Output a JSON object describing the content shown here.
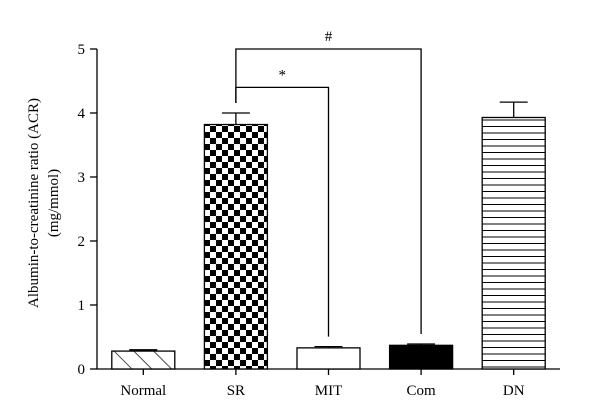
{
  "chart_data": {
    "type": "bar",
    "categories": [
      "Normal",
      "SR",
      "MIT",
      "Com",
      "DN"
    ],
    "values": [
      0.28,
      3.82,
      0.33,
      0.37,
      3.93
    ],
    "errors": [
      0.02,
      0.18,
      0.02,
      0.02,
      0.24
    ],
    "patterns": [
      "diagonal-hatch",
      "checkerboard",
      "solid-white",
      "solid-black",
      "horizontal-lines"
    ],
    "title": "",
    "xlabel": "",
    "ylabel_line1": "Albumin-to-creatinine ratio (ACR)",
    "ylabel_line2": "(mg/mmol)",
    "ylim": [
      0,
      5
    ],
    "yticks": [
      0,
      1,
      2,
      3,
      4,
      5
    ],
    "grid": false,
    "significance": [
      {
        "label": "*",
        "from": "SR",
        "to": "MIT",
        "level": 4.4
      },
      {
        "label": "#",
        "from": "SR",
        "to": "Com",
        "level": 5.0
      }
    ]
  }
}
